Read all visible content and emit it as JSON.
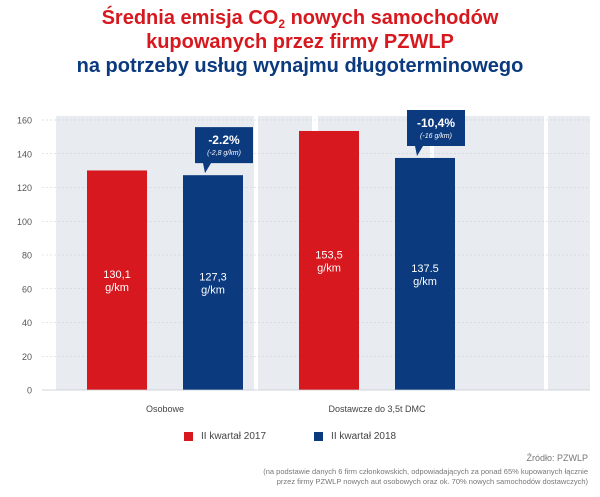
{
  "title": {
    "line1_pre": "Średnia emisja CO",
    "line1_sub": "2",
    "line1_post": " nowych samochodów",
    "line2": "kupowanych przez firmy PZWLP",
    "line3": "na potrzeby usług wynajmu długoterminowego"
  },
  "colors": {
    "series_2017": "#d7191f",
    "series_2018": "#0b3a7e",
    "title_red": "#d7191f",
    "title_blue": "#0b3a7e",
    "band": "#e8ebf0",
    "callout": "#0b3a7e"
  },
  "chart_data": {
    "type": "bar",
    "categories": [
      "Osobowe",
      "Dostawcze do 3,5t DMC"
    ],
    "series": [
      {
        "name": "II kwartał 2017",
        "values": [
          130.1,
          153.5
        ],
        "labels": [
          "130,1",
          "153,5"
        ]
      },
      {
        "name": "II kwartał 2018",
        "values": [
          127.3,
          137.5
        ],
        "labels": [
          "127,3",
          "137.5"
        ]
      }
    ],
    "unit_label": "g/km",
    "ylim": [
      0,
      160
    ],
    "yticks": [
      0,
      20,
      40,
      60,
      80,
      100,
      120,
      140,
      160
    ],
    "grid": true,
    "legend_position": "bottom",
    "annotations": [
      {
        "category": "Osobowe",
        "pct": "-2.2%",
        "abs": "(-2,8 g/km)"
      },
      {
        "category": "Dostawcze do 3,5t DMC",
        "pct": "-10,4%",
        "abs": "(-16 g/km)"
      }
    ]
  },
  "source": "Źródło: PZWLP",
  "note_line1": "(na podstawie danych 6 firm członkowskich, odpowiadających za ponad 65% kupowanych łącznie",
  "note_line2": "przez firmy PZWLP nowych aut osobowych oraz ok. 70% nowych samochodów dostawczych)"
}
